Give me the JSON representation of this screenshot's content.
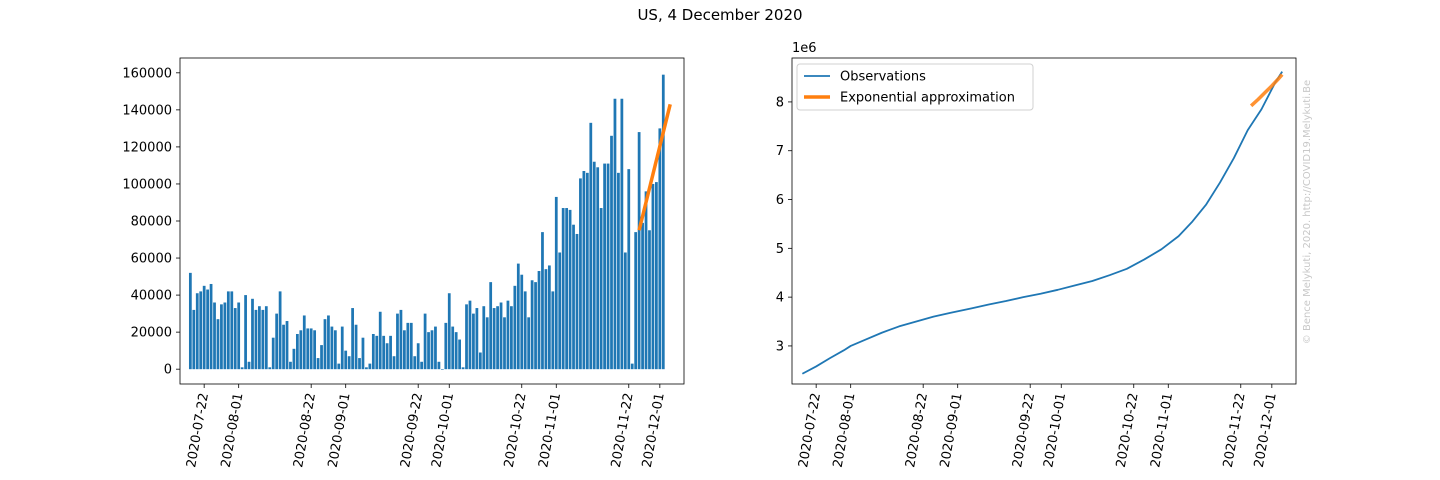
{
  "title": "US, 4 December 2020",
  "watermark": "© Bence Melykuti, 2020. http://COVID19.Melykuti.Be",
  "colors": {
    "bar": "#1f77b4",
    "observations": "#1f77b4",
    "approximation": "#ff7f0e"
  },
  "chart_data": [
    {
      "type": "bar",
      "title": "",
      "xlabel": "",
      "ylabel": "",
      "ylim": [
        -8000,
        168000
      ],
      "yticks": [
        0,
        20000,
        40000,
        60000,
        80000,
        100000,
        120000,
        140000,
        160000
      ],
      "ytick_labels": [
        "0",
        "20000",
        "40000",
        "60000",
        "80000",
        "100000",
        "120000",
        "140000",
        "160000"
      ],
      "x_start": "2020-07-18",
      "xticks": [
        "2020-07-22",
        "2020-08-01",
        "2020-08-22",
        "2020-09-01",
        "2020-09-22",
        "2020-10-01",
        "2020-10-22",
        "2020-11-01",
        "2020-11-22",
        "2020-12-01"
      ],
      "values": [
        52000,
        32000,
        41000,
        42000,
        45000,
        43000,
        46000,
        36000,
        27000,
        35000,
        36000,
        42000,
        42000,
        33000,
        36000,
        1000,
        40000,
        4000,
        38000,
        32000,
        34000,
        32000,
        34000,
        1000,
        17000,
        30000,
        42000,
        24000,
        26000,
        4000,
        11000,
        19000,
        21000,
        29000,
        22000,
        22000,
        21000,
        6000,
        13000,
        27000,
        29000,
        23000,
        21000,
        3000,
        23000,
        10000,
        7000,
        33000,
        24000,
        6000,
        17000,
        1000,
        3000,
        19000,
        18000,
        31000,
        18000,
        14000,
        18000,
        7000,
        30000,
        32000,
        21000,
        25000,
        25000,
        7000,
        14000,
        4000,
        30000,
        20000,
        21000,
        23000,
        4000,
        0,
        25000,
        41000,
        23000,
        20000,
        16000,
        1000,
        35000,
        37000,
        30000,
        33000,
        9000,
        34000,
        28000,
        47000,
        33000,
        34000,
        36000,
        28000,
        37000,
        34000,
        45000,
        57000,
        51000,
        42000,
        28000,
        48000,
        47000,
        53000,
        74000,
        54000,
        56000,
        42000,
        93000,
        63000,
        87000,
        87000,
        86000,
        78000,
        73000,
        103000,
        107000,
        106000,
        133000,
        112000,
        109000,
        87000,
        111000,
        111000,
        126000,
        146000,
        106000,
        146000,
        63000,
        108000,
        3000,
        74000,
        128000,
        79000,
        96000,
        75000,
        100000,
        101000,
        130000,
        159000
      ],
      "series": [
        {
          "name": "",
          "type": "line",
          "x": [
            "2020-11-25",
            "2020-12-04"
          ],
          "y": [
            75000,
            143000
          ]
        }
      ]
    },
    {
      "type": "line",
      "title": "",
      "xlabel": "",
      "ylabel": "",
      "y_scale_label": "1e6",
      "ylim": [
        2.22,
        8.9
      ],
      "yticks": [
        3,
        4,
        5,
        6,
        7,
        8
      ],
      "ytick_labels": [
        "3",
        "4",
        "5",
        "6",
        "7",
        "8"
      ],
      "xticks": [
        "2020-07-22",
        "2020-08-01",
        "2020-08-22",
        "2020-09-01",
        "2020-09-22",
        "2020-10-01",
        "2020-10-22",
        "2020-11-01",
        "2020-11-22",
        "2020-12-01"
      ],
      "legend": "top-left",
      "grid": false,
      "series": [
        {
          "name": "Observations",
          "x": [
            "2020-07-18",
            "2020-07-22",
            "2020-07-26",
            "2020-07-30",
            "2020-08-01",
            "2020-08-05",
            "2020-08-10",
            "2020-08-15",
            "2020-08-20",
            "2020-08-25",
            "2020-08-30",
            "2020-09-05",
            "2020-09-10",
            "2020-09-15",
            "2020-09-20",
            "2020-09-25",
            "2020-09-30",
            "2020-10-05",
            "2020-10-10",
            "2020-10-15",
            "2020-10-20",
            "2020-10-25",
            "2020-10-30",
            "2020-11-04",
            "2020-11-08",
            "2020-11-12",
            "2020-11-16",
            "2020-11-20",
            "2020-11-24",
            "2020-11-28",
            "2020-12-02",
            "2020-12-04"
          ],
          "y": [
            2.43,
            2.58,
            2.75,
            2.91,
            3.0,
            3.12,
            3.27,
            3.4,
            3.5,
            3.6,
            3.68,
            3.77,
            3.85,
            3.92,
            4.0,
            4.07,
            4.15,
            4.24,
            4.33,
            4.45,
            4.58,
            4.77,
            4.98,
            5.25,
            5.55,
            5.9,
            6.35,
            6.85,
            7.42,
            7.85,
            8.4,
            8.62
          ]
        },
        {
          "name": "Exponential approximation",
          "x": [
            "2020-11-25",
            "2020-11-27",
            "2020-11-29",
            "2020-12-01",
            "2020-12-03",
            "2020-12-04"
          ],
          "y": [
            7.92,
            8.05,
            8.19,
            8.33,
            8.48,
            8.56
          ]
        }
      ]
    }
  ]
}
